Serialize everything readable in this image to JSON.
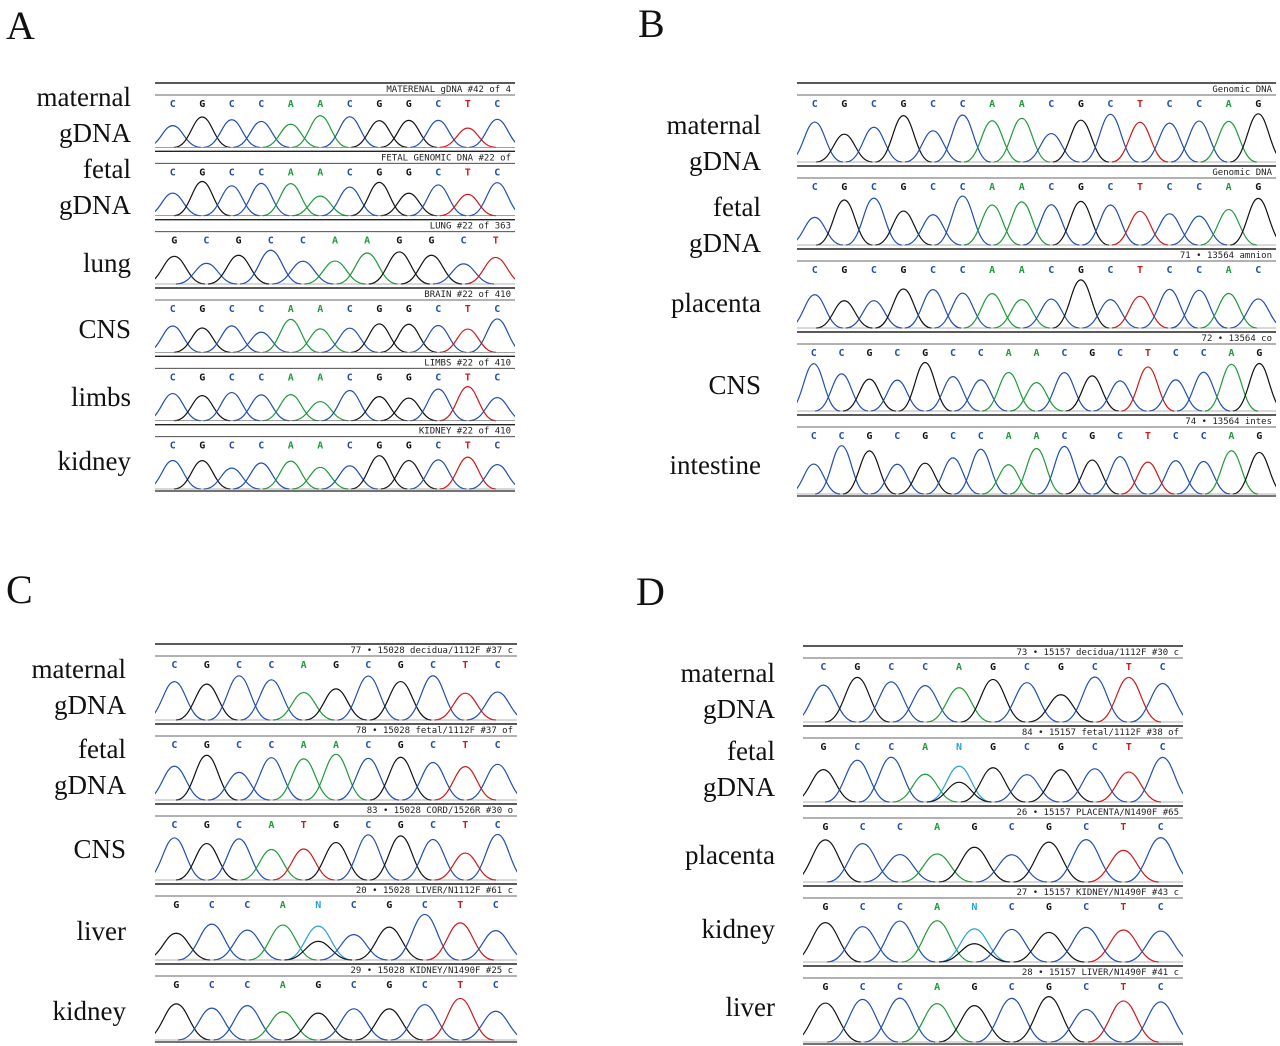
{
  "panels": [
    {
      "letter": "A",
      "labels": [
        "maternal",
        "gDNA",
        "fetal",
        "gDNA",
        "lung",
        "CNS",
        "limbs",
        "kidney"
      ],
      "tracks": [
        {
          "header": "MATERENAL gDNA #42 of 4",
          "bases": "CGCCAACGGCTC"
        },
        {
          "header": "FETAL GENOMIC DNA #22 of",
          "bases": "CGCCAACGGCTC"
        },
        {
          "header": "LUNG #22 of 363",
          "bases": "GCGCCAAGGCT"
        },
        {
          "header": "BRAIN #22 of 410",
          "bases": "CGCCAACGGCTC"
        },
        {
          "header": "LIMBS #22 of 410",
          "bases": "CGCCAACGGCTC"
        },
        {
          "header": "KIDNEY #22 of 410",
          "bases": "CGCCAACGGCTC"
        }
      ]
    },
    {
      "letter": "B",
      "labels": [
        "maternal",
        "gDNA",
        "fetal",
        "gDNA",
        "placenta",
        "CNS",
        "intestine"
      ],
      "tracks": [
        {
          "header": "Genomic DNA",
          "bases": "CGCGCCAACGCTCCAG"
        },
        {
          "header": "Genomic DNA",
          "bases": "CGCGCCAACGCTCCAG"
        },
        {
          "header": "71 • 13564 amnion",
          "bases": "CGCGCCAACGCTCCAC"
        },
        {
          "header": "72 • 13564 co",
          "bases": "CCGCGCCAACGCTCCAG"
        },
        {
          "header": "74 • 13564 intes",
          "bases": "CCGCGCCAACGCTCCAG"
        }
      ]
    },
    {
      "letter": "C",
      "labels": [
        "maternal",
        "gDNA",
        "fetal",
        "gDNA",
        "CNS",
        "liver",
        "kidney"
      ],
      "tracks": [
        {
          "header": "77 • 15028 decidua/1112F #37 c",
          "bases": "CGCCAGCGCTC"
        },
        {
          "header": "78 • 15028 fetal/1112F #37 of",
          "bases": "CGCCAACGCTC"
        },
        {
          "header": "83 • 15028 CORD/1526R #30 o",
          "bases": "CGCATGCGCTC"
        },
        {
          "header": "20 • 15028 LIVER/N1112F #61 c",
          "bases": "GCCANCGCTC"
        },
        {
          "header": "29 • 15028 KIDNEY/N1490F #25 c",
          "bases": "GCCAGCGCTC"
        }
      ]
    },
    {
      "letter": "D",
      "labels": [
        "maternal",
        "gDNA",
        "fetal",
        "gDNA",
        "placenta",
        "kidney",
        "liver"
      ],
      "tracks": [
        {
          "header": "73 • 15157 decidua/1112F #30 c",
          "bases": "CGCCAGCGCTC"
        },
        {
          "header": "84 • 15157 fetal/1112F #38 of",
          "bases": "GCCANGCGCTC"
        },
        {
          "header": "26 • 15157 PLACENTA/N1490F #65",
          "bases": "GCCAGCGCTC"
        },
        {
          "header": "27 • 15157 KIDNEY/N1490F #43 c",
          "bases": "GCCANCGCTC"
        },
        {
          "header": "28 • 15157 LIVER/N1490F #41 c",
          "bases": "GCCAGCGCTC"
        }
      ]
    }
  ],
  "base_colors": {
    "A": "#1f9a3a",
    "C": "#1f4fb0",
    "G": "#111111",
    "T": "#d01818",
    "N": "#2aa0d8"
  }
}
